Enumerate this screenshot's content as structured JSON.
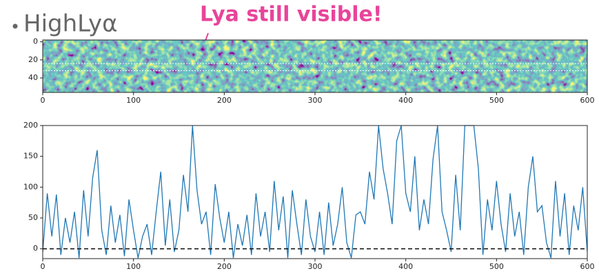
{
  "slide": {
    "heading": "HighLyα",
    "callout": "Lya still visible!"
  },
  "chart_data": [
    {
      "type": "image",
      "xlim": [
        0,
        600
      ],
      "ylim": [
        56,
        -2
      ],
      "xticks": [
        0,
        100,
        200,
        300,
        400,
        500,
        600
      ],
      "yticks": [
        0,
        20,
        40
      ],
      "hlines": [
        24,
        32
      ]
    },
    {
      "type": "line",
      "color": "#1f77b4",
      "xlim": [
        0,
        600
      ],
      "ylim": [
        -16,
        200
      ],
      "xticks": [
        0,
        100,
        200,
        300,
        400,
        500,
        600
      ],
      "yticks": [
        0,
        50,
        100,
        150,
        200
      ],
      "hline": 0,
      "x": [
        0,
        5,
        10,
        15,
        20,
        25,
        30,
        35,
        40,
        45,
        50,
        55,
        60,
        65,
        70,
        75,
        80,
        85,
        90,
        95,
        100,
        105,
        110,
        115,
        120,
        125,
        130,
        135,
        140,
        145,
        150,
        155,
        160,
        165,
        170,
        175,
        180,
        185,
        190,
        195,
        200,
        205,
        210,
        215,
        220,
        225,
        230,
        235,
        240,
        245,
        250,
        255,
        260,
        265,
        270,
        275,
        280,
        285,
        290,
        295,
        300,
        305,
        310,
        315,
        320,
        325,
        330,
        335,
        340,
        345,
        350,
        355,
        360,
        365,
        370,
        375,
        380,
        385,
        390,
        395,
        400,
        405,
        410,
        415,
        420,
        425,
        430,
        435,
        440,
        445,
        450,
        455,
        460,
        465,
        470,
        475,
        480,
        485,
        490,
        495,
        500,
        505,
        510,
        515,
        520,
        525,
        530,
        535,
        540,
        545,
        550,
        555,
        560,
        565,
        570,
        575,
        580,
        585,
        590,
        595,
        600
      ],
      "values": [
        -5,
        90,
        20,
        88,
        -10,
        50,
        10,
        60,
        -15,
        95,
        20,
        115,
        160,
        30,
        -10,
        70,
        10,
        55,
        -12,
        80,
        30,
        -15,
        20,
        40,
        -10,
        60,
        125,
        5,
        80,
        -5,
        30,
        120,
        60,
        200,
        95,
        40,
        60,
        -10,
        105,
        50,
        10,
        60,
        -15,
        40,
        5,
        55,
        -10,
        90,
        20,
        60,
        -5,
        110,
        30,
        85,
        -15,
        95,
        40,
        -10,
        80,
        20,
        -5,
        60,
        -10,
        75,
        5,
        40,
        100,
        10,
        -15,
        55,
        60,
        40,
        125,
        80,
        200,
        130,
        90,
        40,
        175,
        200,
        90,
        60,
        150,
        30,
        80,
        40,
        145,
        200,
        60,
        30,
        -5,
        120,
        30,
        200,
        200,
        200,
        130,
        -10,
        80,
        30,
        110,
        40,
        -5,
        90,
        20,
        60,
        -10,
        100,
        150,
        60,
        70,
        10,
        -15,
        110,
        20,
        90,
        -10,
        70,
        30,
        100,
        -5
      ]
    }
  ]
}
